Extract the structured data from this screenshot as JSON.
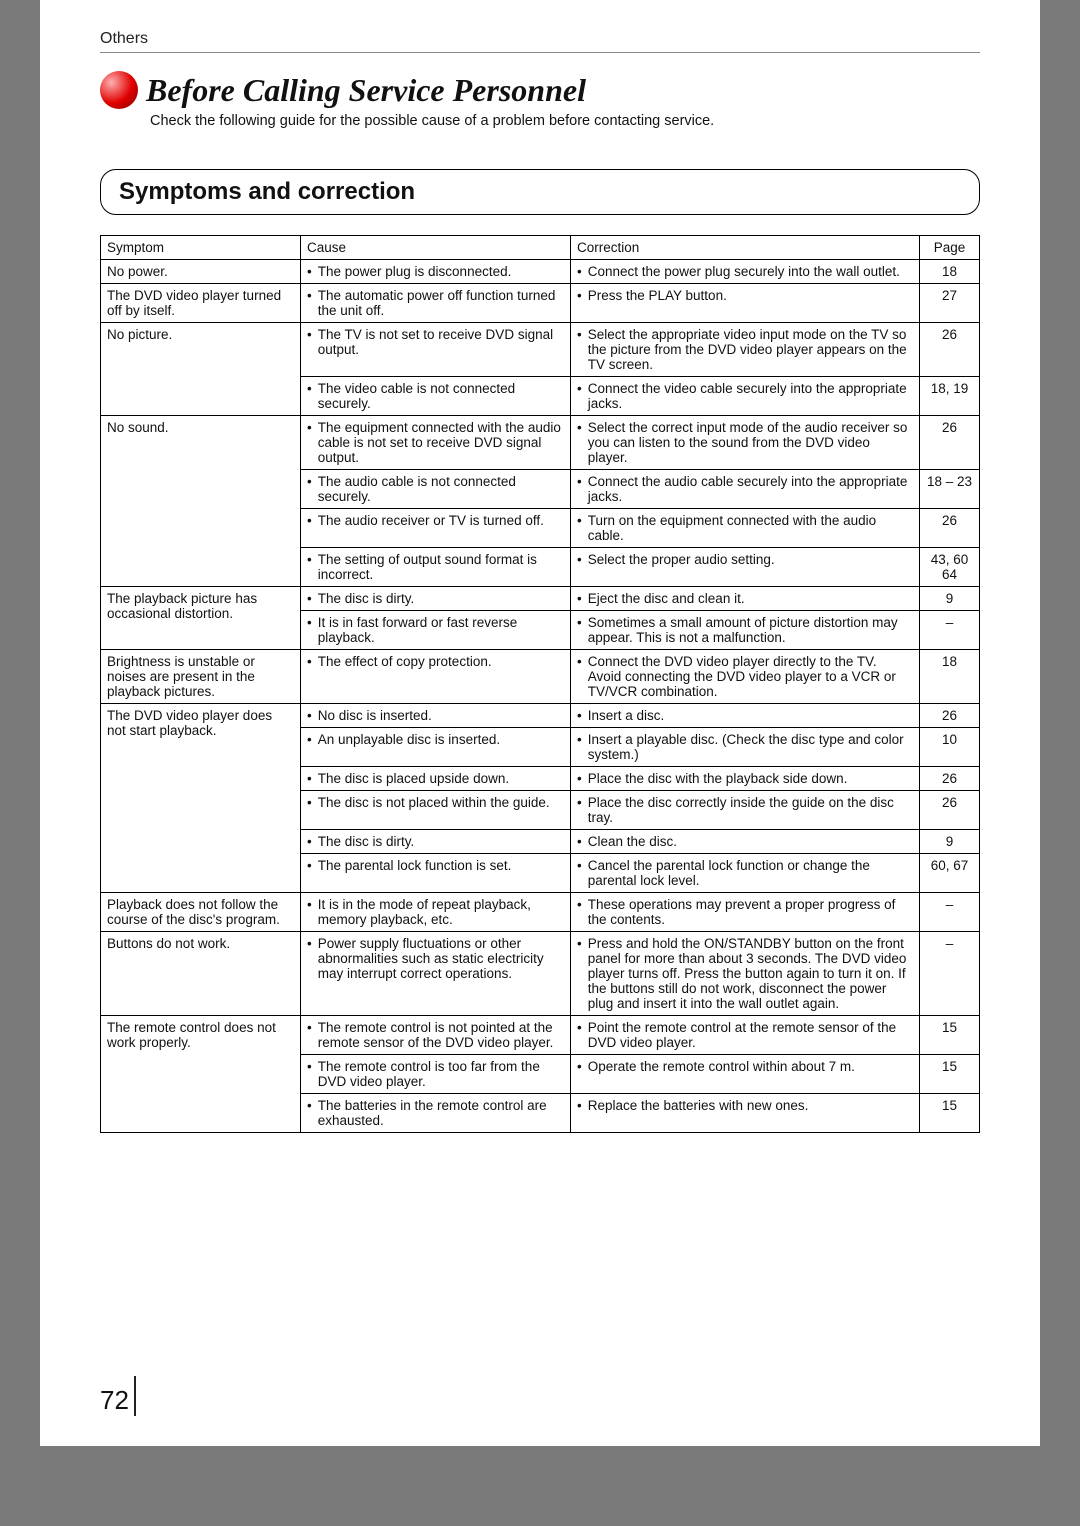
{
  "section_label": "Others",
  "main_title": "Before Calling Service Personnel",
  "subtitle": "Check the following guide for the possible cause of a problem before contacting service.",
  "box_title": "Symptoms and correction",
  "headers": {
    "symptom": "Symptom",
    "cause": "Cause",
    "correction": "Correction",
    "page": "Page"
  },
  "groups": [
    {
      "symptom": "No power.",
      "rows": [
        {
          "cause": "The power plug is disconnected.",
          "correction": "Connect the power plug securely into the wall outlet.",
          "page": "18"
        }
      ]
    },
    {
      "symptom": "The DVD video player turned off by itself.",
      "rows": [
        {
          "cause": "The automatic power off function turned the unit off.",
          "correction": "Press the PLAY button.",
          "page": "27"
        }
      ]
    },
    {
      "symptom": "No picture.",
      "rows": [
        {
          "cause": "The TV is not set to receive DVD signal output.",
          "correction": "Select the appropriate video input mode on the TV so the picture from the DVD video player appears on the TV screen.",
          "page": "26"
        },
        {
          "cause": "The video cable is not connected securely.",
          "correction": "Connect the video cable securely into the appropriate jacks.",
          "page": "18, 19"
        }
      ]
    },
    {
      "symptom": "No sound.",
      "rows": [
        {
          "cause": "The equipment connected with the audio cable is not set to receive DVD signal output.",
          "correction": "Select the correct input mode of the audio receiver so you can listen to the sound from the DVD video player.",
          "page": "26"
        },
        {
          "cause": "The audio cable is not connected securely.",
          "correction": "Connect the audio cable securely into the appropriate jacks.",
          "page": "18 – 23"
        },
        {
          "cause": "The audio receiver or TV is turned off.",
          "correction": "Turn on the equipment connected with the audio cable.",
          "page": "26"
        },
        {
          "cause": "The setting of output sound format is incorrect.",
          "correction": "Select the proper audio setting.",
          "page": "43, 60 64"
        }
      ]
    },
    {
      "symptom": "The playback picture has occasional distortion.",
      "rows": [
        {
          "cause": "The disc is dirty.",
          "correction": "Eject the disc and clean it.",
          "page": "9"
        },
        {
          "cause": "It is in fast forward or fast reverse playback.",
          "correction": "Sometimes a small amount of picture distortion may appear. This is not a malfunction.",
          "page": "–"
        }
      ]
    },
    {
      "symptom": "Brightness is unstable or noises are present in the playback pictures.",
      "rows": [
        {
          "cause": "The effect of copy protection.",
          "correction": "Connect the DVD video player directly to the TV.  Avoid connecting the DVD video player to a VCR or TV/VCR combination.",
          "page": "18"
        }
      ]
    },
    {
      "symptom": "The DVD video player does not start playback.",
      "rows": [
        {
          "cause": "No disc is inserted.",
          "correction": "Insert a disc.",
          "page": "26"
        },
        {
          "cause": "An unplayable disc is inserted.",
          "correction": "Insert a playable disc. (Check the disc type and color system.)",
          "page": "10"
        },
        {
          "cause": "The disc is placed upside down.",
          "correction": "Place the disc with the playback side down.",
          "page": "26"
        },
        {
          "cause": "The disc is not placed within the guide.",
          "correction": "Place the disc correctly inside the guide on the disc tray.",
          "page": "26"
        },
        {
          "cause": "The disc is dirty.",
          "correction": "Clean the disc.",
          "page": "9"
        },
        {
          "cause": "The parental lock function is set.",
          "correction": "Cancel the parental lock function or change the parental lock level.",
          "page": "60, 67"
        }
      ]
    },
    {
      "symptom": "Playback does not follow the course of the disc's program.",
      "rows": [
        {
          "cause": "It is in the mode of repeat playback, memory playback, etc.",
          "correction": "These operations may prevent a proper progress of the contents.",
          "page": "–"
        }
      ]
    },
    {
      "symptom": "Buttons do not work.",
      "rows": [
        {
          "cause": "Power supply fluctuations or other abnormalities such as static electricity may interrupt correct operations.",
          "correction": "Press and hold the ON/STANDBY button on the front panel for more than about 3 seconds. The DVD video player turns off. Press the button again to turn it on. If the buttons still do not work, disconnect the power plug and insert it into the wall outlet again.",
          "page": "–"
        }
      ]
    },
    {
      "symptom": "The remote control does not work properly.",
      "rows": [
        {
          "cause": "The remote control is not pointed at the remote sensor of the DVD video player.",
          "correction": "Point the remote control at the remote sensor of the DVD video player.",
          "page": "15"
        },
        {
          "cause": "The remote control is too far from the DVD video player.",
          "correction": "Operate the remote control within about 7 m.",
          "page": "15"
        },
        {
          "cause": "The batteries in the remote control are exhausted.",
          "correction": "Replace the batteries with new ones.",
          "page": "15"
        }
      ]
    }
  ],
  "page_number": "72"
}
